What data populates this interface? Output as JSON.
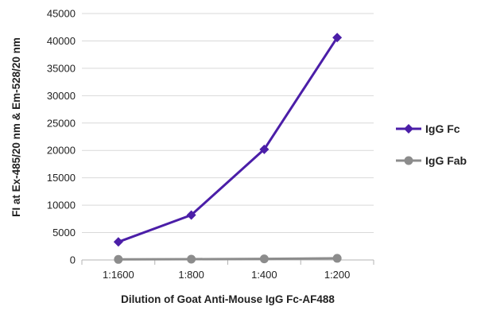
{
  "chart_data": {
    "type": "line",
    "title": "",
    "xlabel": "Dilution of Goat Anti-Mouse IgG Fc-AF488",
    "ylabel": "FI at Ex-485/20 nm & Em-528/20 nm",
    "categories": [
      "1:1600",
      "1:800",
      "1:400",
      "1:200"
    ],
    "ylim": [
      0,
      45000
    ],
    "yticks": [
      0,
      5000,
      10000,
      15000,
      20000,
      25000,
      30000,
      35000,
      40000,
      45000
    ],
    "grid": "horizontal",
    "legend_position": "right",
    "series": [
      {
        "name": "IgG Fc",
        "values": [
          3300,
          8200,
          20200,
          40600
        ],
        "color": "#4b1ea8",
        "marker": "diamond"
      },
      {
        "name": "IgG Fab",
        "values": [
          100,
          150,
          200,
          300
        ],
        "color": "#8c8c8c",
        "marker": "circle"
      }
    ]
  }
}
